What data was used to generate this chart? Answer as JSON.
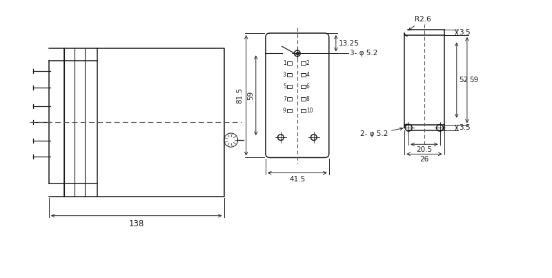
{
  "bg_color": "#ffffff",
  "line_color": "#1a1a1a",
  "dim_color": "#1a1a1a",
  "dashed_color": "#555555",
  "figsize": [
    8.0,
    4.03
  ],
  "dpi": 100,
  "dim_138": "138",
  "dim_815": "81.5",
  "dim_59_left": "59",
  "dim_1325": "13.25",
  "dim_415": "41.5",
  "dim_r26": "R2.6",
  "dim_35_top": "3.5",
  "dim_35_bot": "3.5",
  "dim_52": "52",
  "dim_59_right": "59",
  "dim_205": "20.5",
  "dim_26": "26",
  "dim_3phi52": "3- φ 5.2",
  "dim_2phi52": "2- φ 5.2",
  "lw_main": 1.1,
  "lw_dim": 0.65,
  "lw_inner": 0.8
}
